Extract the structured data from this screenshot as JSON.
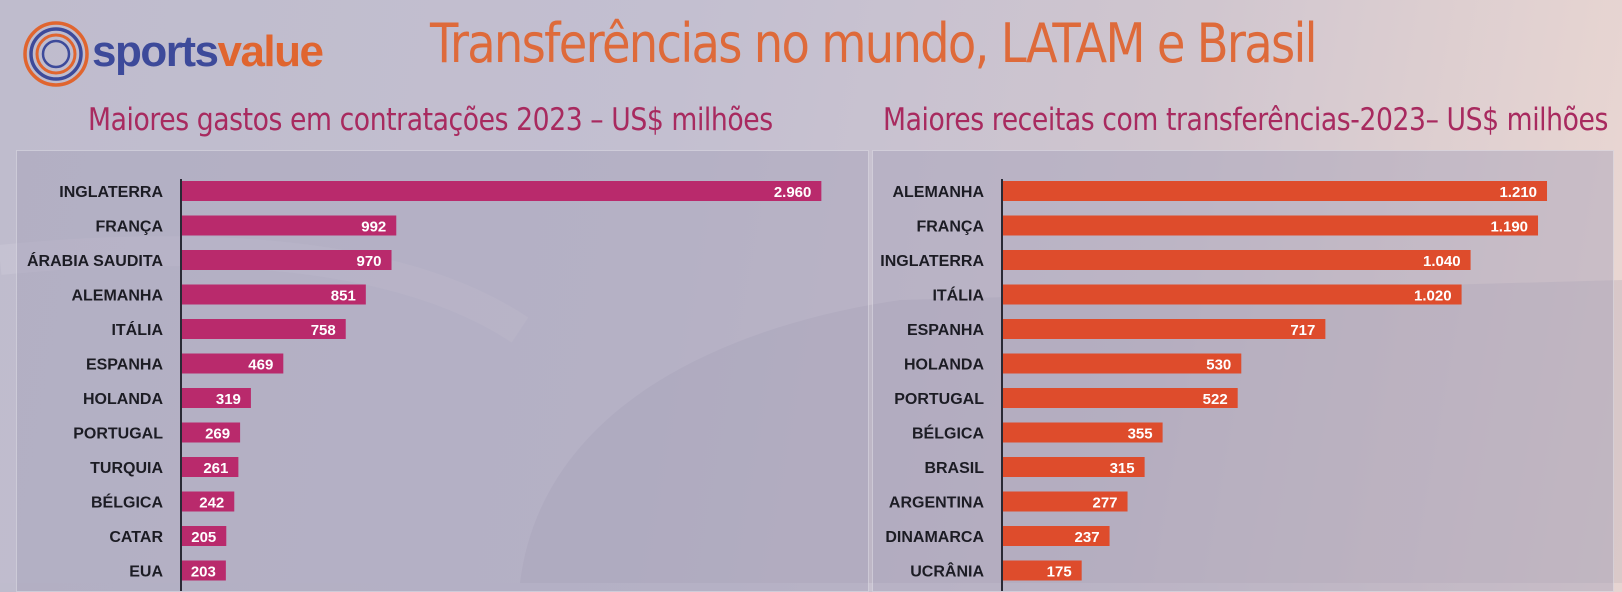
{
  "brand": {
    "part1": "sports",
    "part2": "value"
  },
  "title": "Transferências no mundo, LATAM e Brasil",
  "colors": {
    "spend_bar": "#b92a6c",
    "revenue_bar": "#de4c2c",
    "title": "#de6a3a",
    "subtitle": "#a82a5f"
  },
  "chart_data": [
    {
      "type": "bar",
      "orientation": "horizontal",
      "title": "Maiores gastos em contratações 2023 – US$ milhões",
      "categories": [
        "INGLATERRA",
        "FRANÇA",
        "ÁRABIA SAUDITA",
        "ALEMANHA",
        "ITÁLIA",
        "ESPANHA",
        "HOLANDA",
        "PORTUGAL",
        "TURQUIA",
        "BÉLGICA",
        "CATAR",
        "EUA"
      ],
      "values": [
        2960,
        992,
        970,
        851,
        758,
        469,
        319,
        269,
        261,
        242,
        205,
        203
      ],
      "value_labels": [
        "2.960",
        "992",
        "970",
        "851",
        "758",
        "469",
        "319",
        "269",
        "261",
        "242",
        "205",
        "203"
      ],
      "xlim": [
        0,
        3000
      ],
      "grid": false,
      "legend": "none"
    },
    {
      "type": "bar",
      "orientation": "horizontal",
      "title": "Maiores receitas com transferências-2023– US$ milhões",
      "categories": [
        "ALEMANHA",
        "FRANÇA",
        "INGLATERRA",
        "ITÁLIA",
        "ESPANHA",
        "HOLANDA",
        "PORTUGAL",
        "BÉLGICA",
        "BRASIL",
        "ARGENTINA",
        "DINAMARCA",
        "UCRÂNIA"
      ],
      "values": [
        1210,
        1190,
        1040,
        1020,
        717,
        530,
        522,
        355,
        315,
        277,
        237,
        175
      ],
      "value_labels": [
        "1.210",
        "1.190",
        "1.040",
        "1.020",
        "717",
        "530",
        "522",
        "355",
        "315",
        "277",
        "237",
        "175"
      ],
      "xlim": [
        0,
        1250
      ],
      "grid": false,
      "legend": "none"
    }
  ]
}
